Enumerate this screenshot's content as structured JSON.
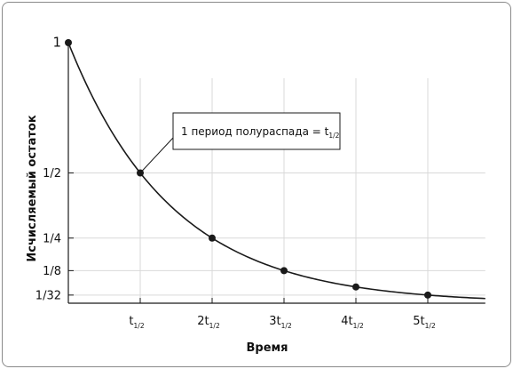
{
  "chart_data": {
    "type": "line",
    "title": "",
    "xlabel": "Время",
    "ylabel": "Исчисляемый остаток",
    "x_ticks": [
      {
        "main": "t",
        "sub": "1/2"
      },
      {
        "main": "2t",
        "sub": "1/2"
      },
      {
        "main": "3t",
        "sub": "1/2"
      },
      {
        "main": "4t",
        "sub": "1/2"
      },
      {
        "main": "5t",
        "sub": "1/2"
      }
    ],
    "y_ticks": [
      {
        "label": "1",
        "value": 1
      },
      {
        "label": "1/2",
        "value": 0.5
      },
      {
        "label": "1/4",
        "value": 0.25
      },
      {
        "label": "1/8",
        "value": 0.125
      },
      {
        "label": "1/32",
        "value": 0.03125
      }
    ],
    "points": [
      {
        "x": 0,
        "y": 1
      },
      {
        "x": 1,
        "y": 0.5
      },
      {
        "x": 2,
        "y": 0.25
      },
      {
        "x": 3,
        "y": 0.125
      },
      {
        "x": 4,
        "y": 0.0625
      },
      {
        "x": 5,
        "y": 0.03125
      }
    ],
    "curve": {
      "formula": "y = 0.5^x",
      "x_range": [
        0,
        5.8
      ]
    },
    "xlim": [
      0,
      5.8
    ],
    "annotation": {
      "text": "1 период полураспада = t",
      "sub": "1/2",
      "points_to": {
        "x": 1,
        "y": 0.5
      }
    },
    "grid": true,
    "colors": {
      "curve": "#1a1a1a",
      "grid": "#d9d9d9",
      "axis": "#1a1a1a"
    }
  }
}
